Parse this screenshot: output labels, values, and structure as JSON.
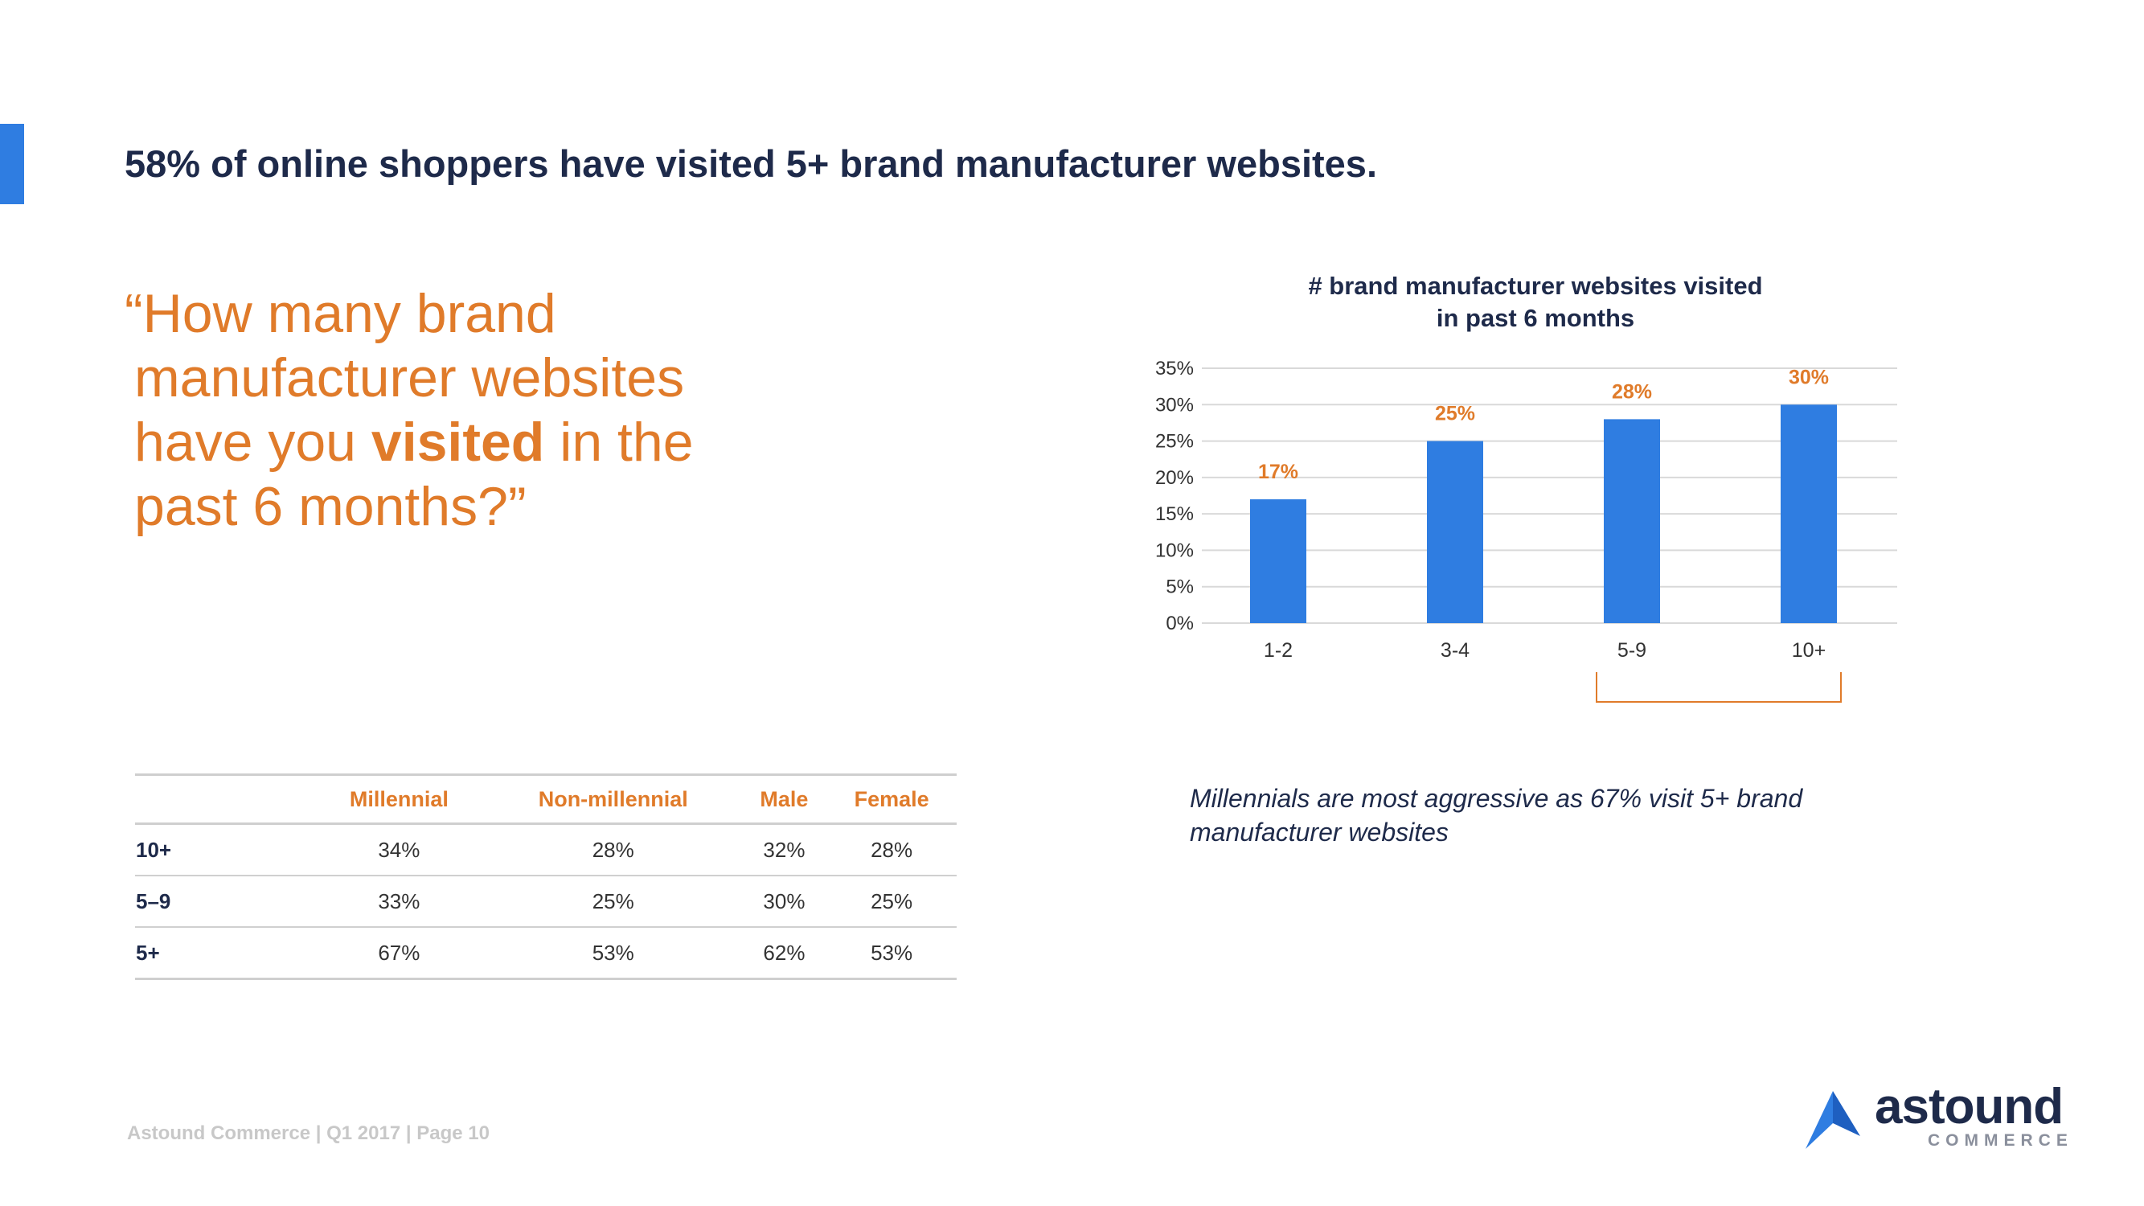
{
  "slide": {
    "title": "58% of online shoppers have visited 5+ brand manufacturer websites.",
    "question": {
      "line1": "“How many brand",
      "line2": "manufacturer websites",
      "line3_pre": "have you ",
      "line3_bold": "visited",
      "line3_post": " in the",
      "line4": "past 6 months?”"
    },
    "insight": "Millennials are most aggressive as 67% visit 5+ brand manufacturer websites",
    "footer": "Astound Commerce | Q1 2017 | Page 10",
    "logo": {
      "word": "astound",
      "sub": "COMMERCE"
    }
  },
  "colors": {
    "accent": "#2f7de1",
    "bar": "#2f7de1",
    "highlight": "#e07b2a",
    "title": "#1e2a4a"
  },
  "chart_data": {
    "type": "bar",
    "title_line1": "# brand manufacturer websites visited",
    "title_line2": "in past 6 months",
    "categories": [
      "1-2",
      "3-4",
      "5-9",
      "10+"
    ],
    "values": [
      17,
      25,
      28,
      30
    ],
    "value_labels": [
      "17%",
      "25%",
      "28%",
      "30%"
    ],
    "yticks": [
      "0%",
      "5%",
      "10%",
      "15%",
      "20%",
      "25%",
      "30%",
      "35%"
    ],
    "ylim": [
      0,
      35
    ],
    "xlabel": "",
    "ylabel": "",
    "grid": true
  },
  "table": {
    "headers": [
      "",
      "Millennial",
      "Non-millennial",
      "Male",
      "Female"
    ],
    "rows": [
      {
        "label": "10+",
        "values": [
          "34%",
          "28%",
          "32%",
          "28%"
        ]
      },
      {
        "label": "5–9",
        "values": [
          "33%",
          "25%",
          "30%",
          "25%"
        ]
      },
      {
        "label": "5+",
        "values": [
          "67%",
          "53%",
          "62%",
          "53%"
        ]
      }
    ]
  }
}
